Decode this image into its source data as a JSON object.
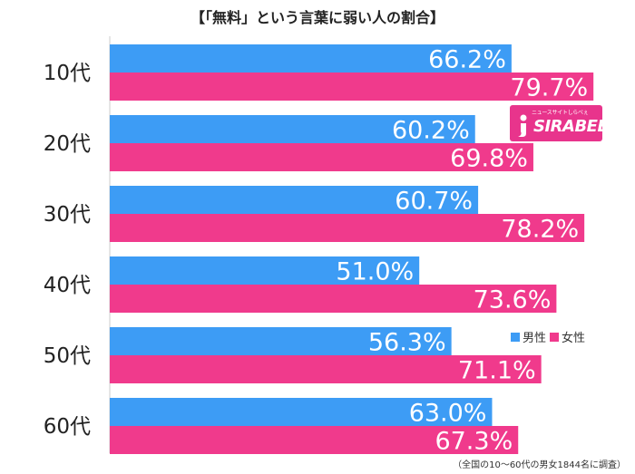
{
  "title": "【「無料」という言葉に弱い人の割合】",
  "note": "（全国の10～60代の男女1844名に調査）",
  "logo": {
    "tagline": "ニュースサイトしらべぇ",
    "name": "SIRABEE",
    "color": "#e8348c"
  },
  "legend": {
    "male": "男性",
    "female": "女性"
  },
  "colors": {
    "male": "#3d9cf5",
    "female": "#f03a8c",
    "axis": "#cccccc"
  },
  "chart_data": {
    "type": "bar",
    "orientation": "horizontal",
    "title": "【「無料」という言葉に弱い人の割合】",
    "categories": [
      "10代",
      "20代",
      "30代",
      "40代",
      "50代",
      "60代"
    ],
    "series": [
      {
        "name": "男性",
        "values": [
          66.2,
          60.2,
          60.7,
          51.0,
          56.3,
          63.0
        ],
        "labels": [
          "66.2%",
          "60.2%",
          "60.7%",
          "51.0%",
          "56.3%",
          "63.0%"
        ]
      },
      {
        "name": "女性",
        "values": [
          79.7,
          69.8,
          78.2,
          73.6,
          71.1,
          67.3
        ],
        "labels": [
          "79.7%",
          "69.8%",
          "78.2%",
          "73.6%",
          "71.1%",
          "67.3%"
        ]
      }
    ],
    "xlim": [
      0,
      100
    ],
    "unit": "%",
    "legend_position": "right"
  }
}
